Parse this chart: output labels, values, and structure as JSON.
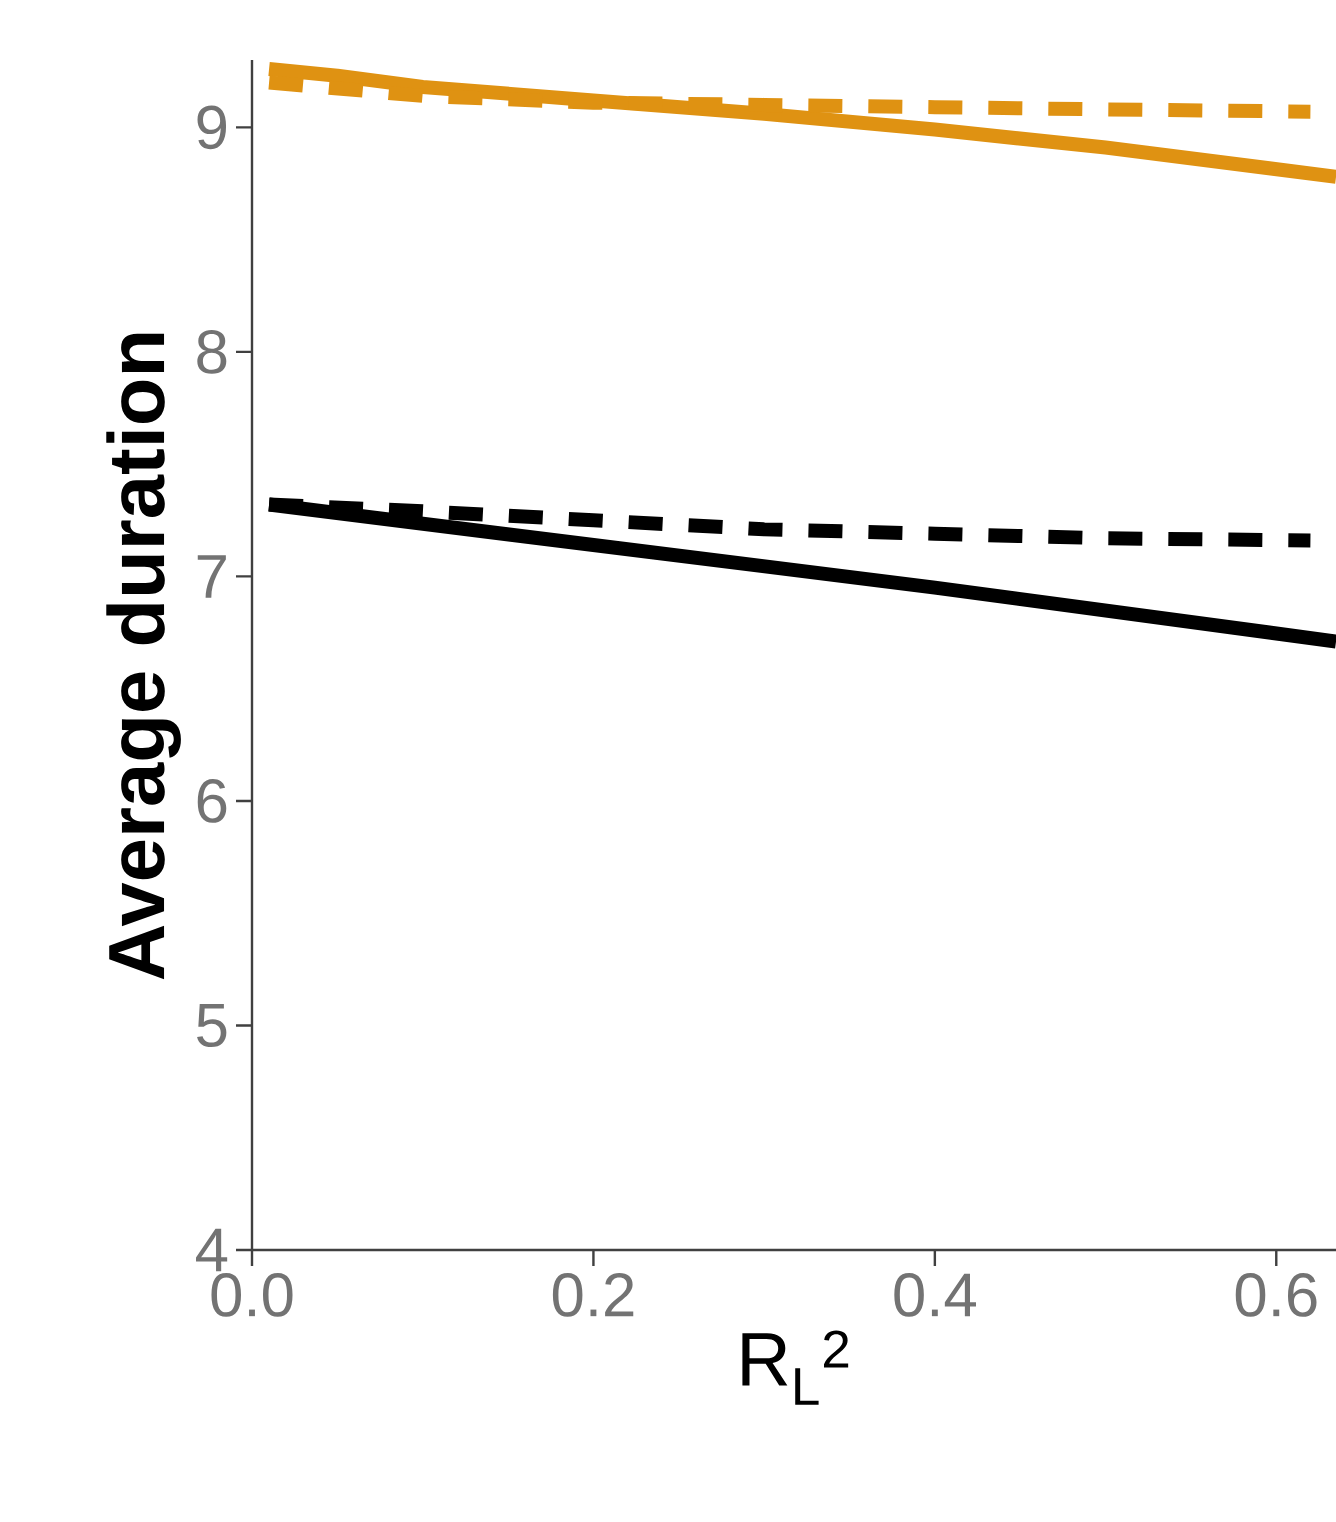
{
  "chart_data": {
    "type": "line",
    "xlabel": "R$_{L}$$^{2}$",
    "ylabel": "Average duration",
    "xlim": [
      0,
      0.635
    ],
    "ylim": [
      4,
      9.3
    ],
    "xticks": [
      {
        "value": 0,
        "label": "0.0"
      },
      0.2,
      0.4,
      0.6
    ],
    "yticks": [
      4,
      5,
      6,
      7,
      8,
      9
    ],
    "grid": false,
    "series": [
      {
        "color": "#df9212",
        "line_style": "solid",
        "x": [
          0.01,
          0.05,
          0.1,
          0.2,
          0.3,
          0.4,
          0.5,
          0.635
        ],
        "values": [
          9.26,
          9.23,
          9.18,
          9.12,
          9.06,
          8.99,
          8.91,
          8.78
        ]
      },
      {
        "color": "#df9212",
        "line_style": "dashed",
        "x": [
          0.01,
          0.1,
          0.2,
          0.3,
          0.4,
          0.5,
          0.62
        ],
        "values": [
          9.2,
          9.14,
          9.11,
          9.1,
          9.09,
          9.08,
          9.07
        ]
      },
      {
        "color": "#000000",
        "line_style": "solid",
        "x": [
          0.01,
          0.2,
          0.4,
          0.635
        ],
        "values": [
          7.32,
          7.14,
          6.95,
          6.71
        ]
      },
      {
        "color": "#000000",
        "line_style": "dashed",
        "x": [
          0.01,
          0.1,
          0.2,
          0.3,
          0.4,
          0.5,
          0.62
        ],
        "values": [
          7.32,
          7.29,
          7.25,
          7.21,
          7.19,
          7.17,
          7.16
        ]
      }
    ]
  }
}
